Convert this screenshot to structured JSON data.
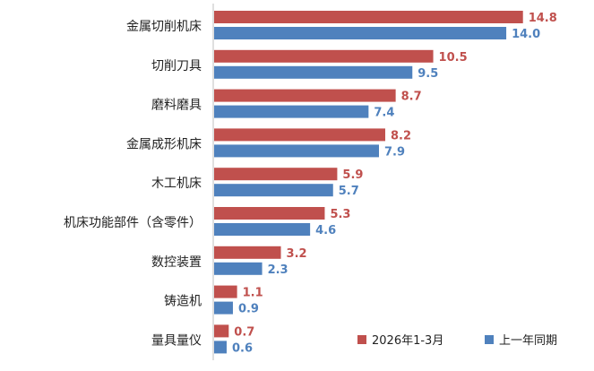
{
  "chart_data": {
    "type": "bar",
    "orientation": "horizontal",
    "categories": [
      "金属切削机床",
      "切削刀具",
      "磨料磨具",
      "金属成形机床",
      "木工机床",
      "机床功能部件（含零件）",
      "数控装置",
      "铸造机",
      "量具量仪"
    ],
    "series": [
      {
        "name": "2026年1-3月",
        "color": "#c0504d",
        "values": [
          14.8,
          10.5,
          8.7,
          8.2,
          5.9,
          5.3,
          3.2,
          1.1,
          0.7
        ]
      },
      {
        "name": "上一年同期",
        "color": "#4f81bd",
        "values": [
          14.0,
          9.5,
          7.4,
          7.9,
          5.7,
          4.6,
          2.3,
          0.9,
          0.6
        ]
      }
    ],
    "xlim": [
      0,
      15.8
    ],
    "grid": false,
    "legend_position": "bottom-right",
    "axis_color": "#bfbfbf"
  }
}
